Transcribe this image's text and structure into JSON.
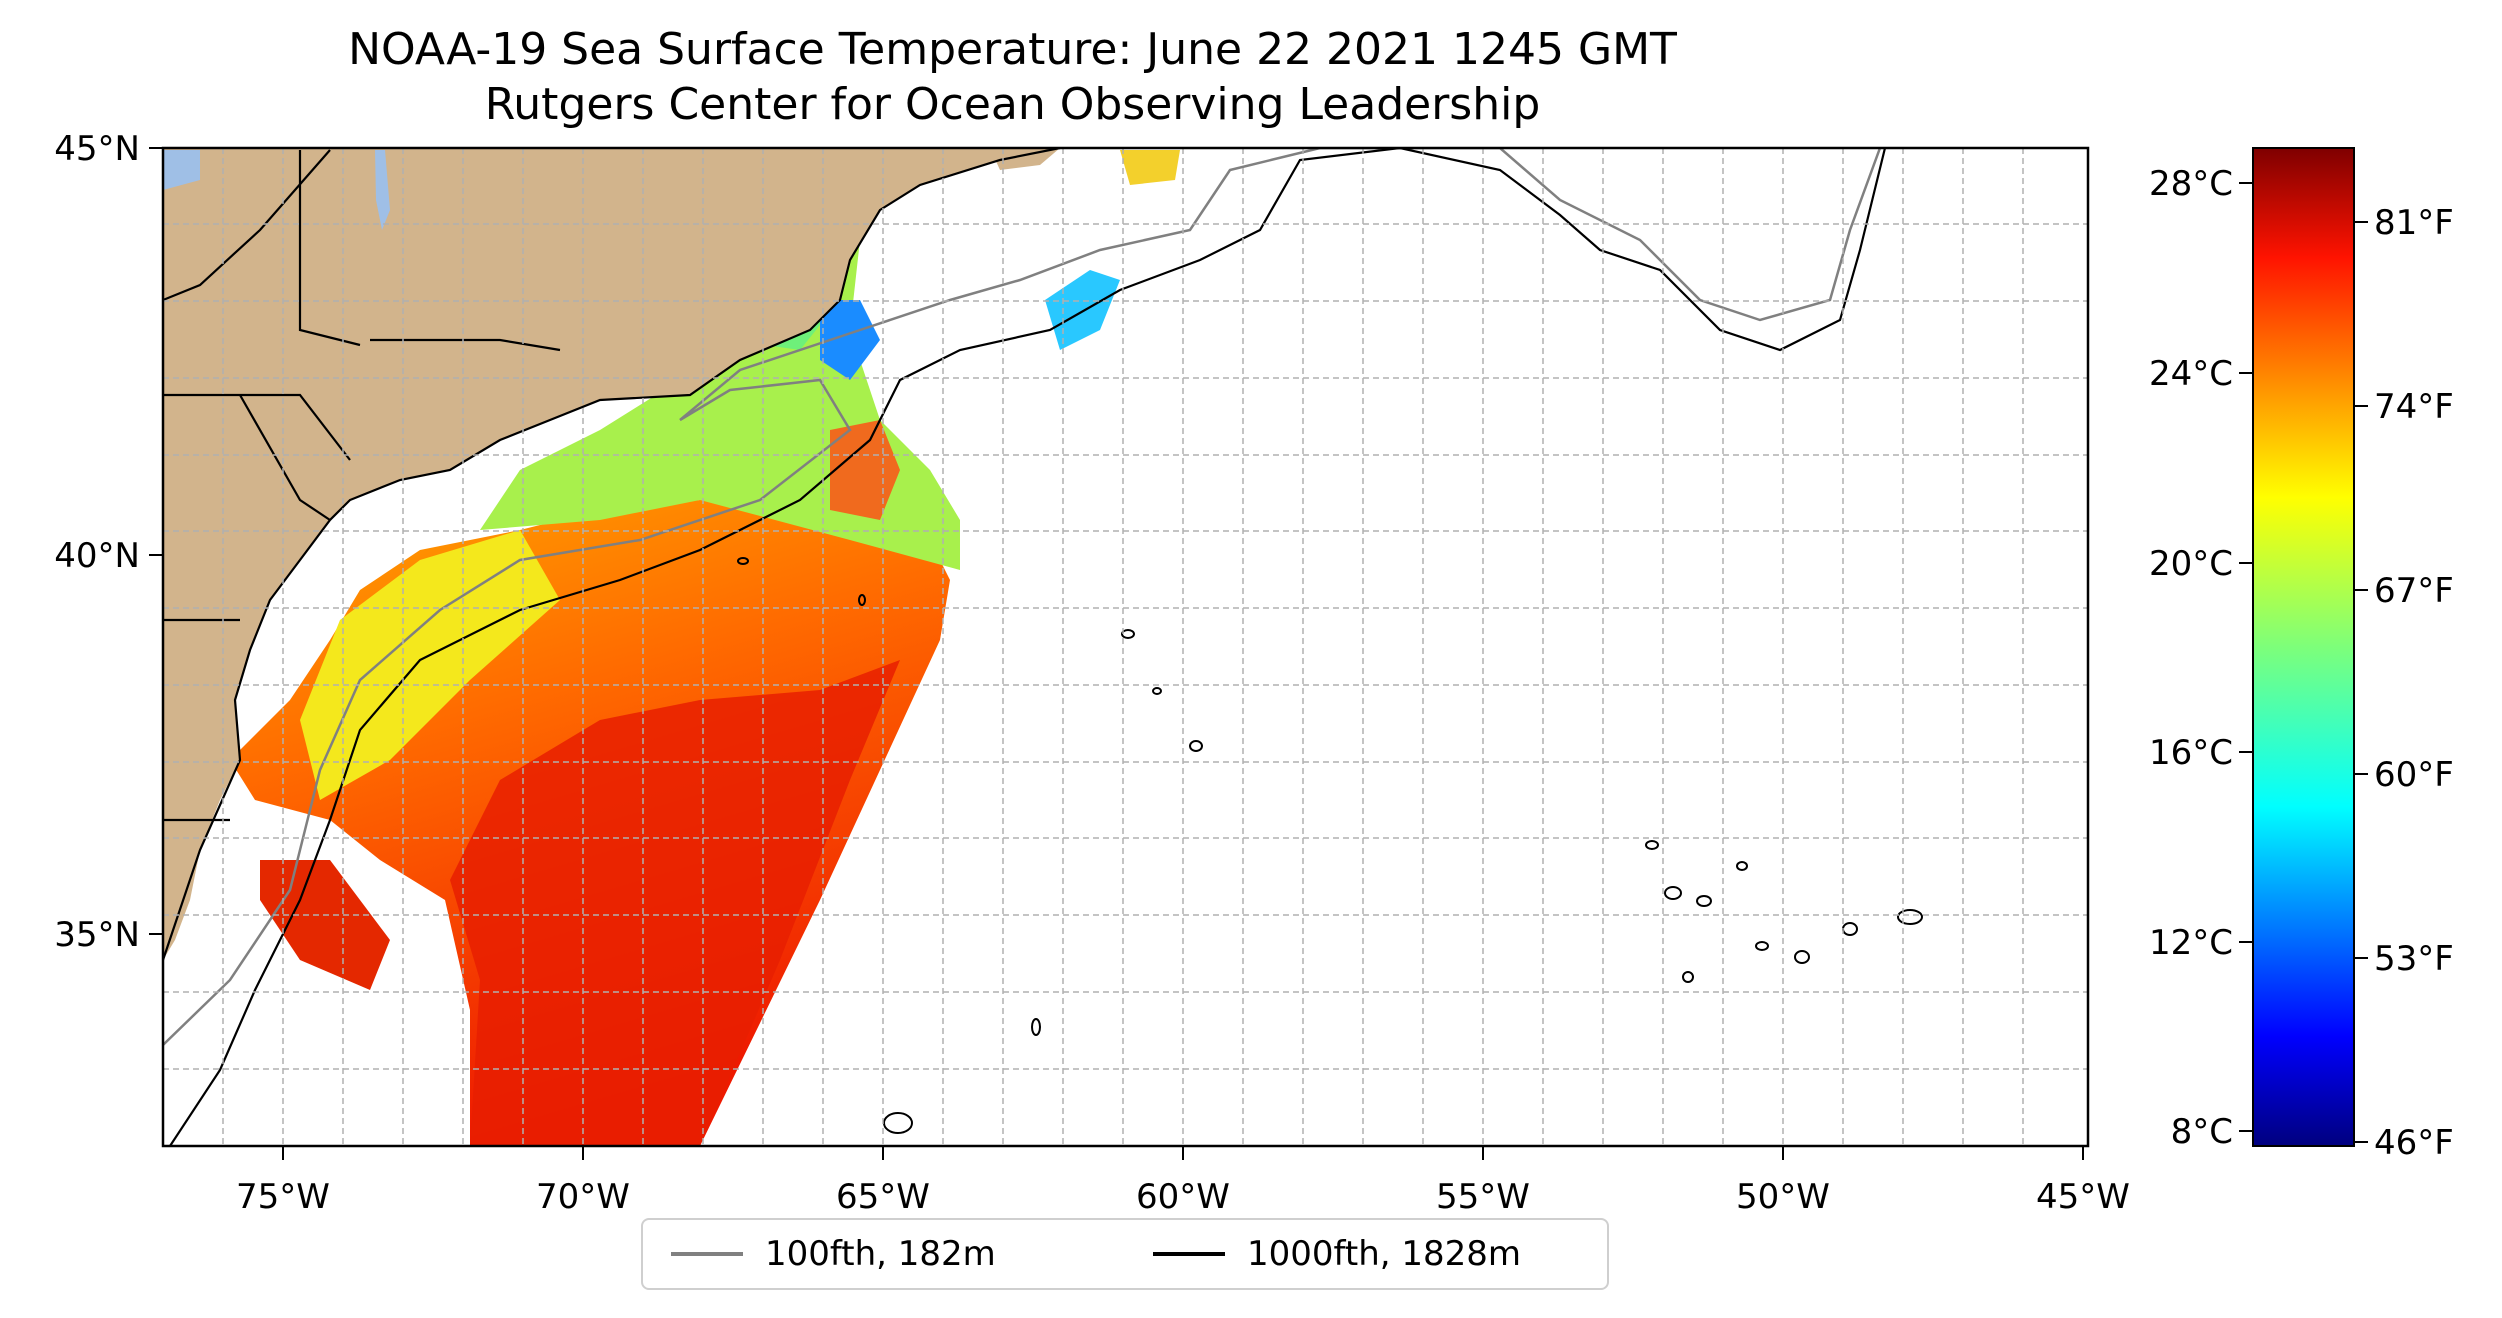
{
  "title": {
    "line1": "NOAA-19 Sea Surface Temperature: June 22 2021 1245 GMT",
    "line2": "Rutgers Center for Ocean Observing Leadership"
  },
  "map": {
    "lon_range": [
      -77,
      -45
    ],
    "lat_range": [
      32,
      45
    ],
    "x_ticks": [
      "75°W",
      "70°W",
      "65°W",
      "60°W",
      "55°W",
      "50°W",
      "45°W"
    ],
    "y_ticks": [
      "45°N",
      "40°N",
      "35°N"
    ],
    "gridlines": "dashed gray",
    "land_color": "#d2b48c",
    "water_body_color": "#9fbfe6"
  },
  "colorbar": {
    "colormap": "jet",
    "celsius_ticks": [
      "28°C",
      "24°C",
      "20°C",
      "16°C",
      "12°C",
      "8°C"
    ],
    "fahrenheit_ticks": [
      "81°F",
      "74°F",
      "67°F",
      "60°F",
      "53°F",
      "46°F"
    ],
    "range_f": [
      45,
      84
    ]
  },
  "legend": {
    "items": [
      {
        "label": "100fth, 182m",
        "color": "#808080"
      },
      {
        "label": "1000fth, 1828m",
        "color": "#000000"
      }
    ]
  }
}
